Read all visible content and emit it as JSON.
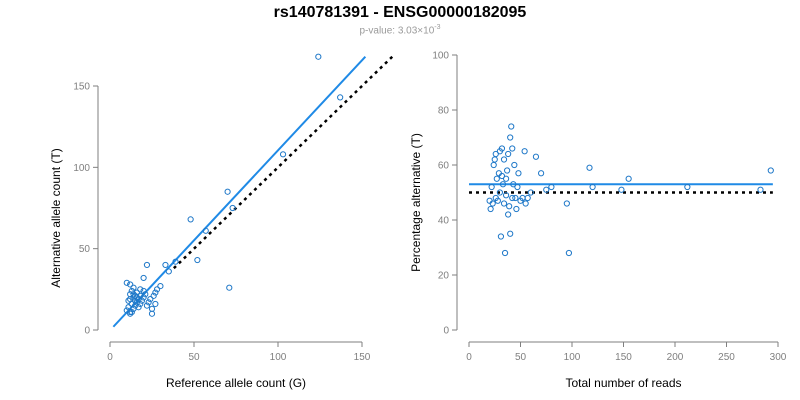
{
  "header": {
    "title": "rs140781391 - ENSG00000182095",
    "pvalue_label": "p-value: 3.03×10",
    "pvalue_exponent": "-3"
  },
  "colors": {
    "points": "#1f78c8",
    "fit_line": "#1f8ae6",
    "reference_line": "#000000",
    "axis": "#7f7f7f"
  },
  "chart_data": [
    {
      "type": "scatter",
      "xlabel": "Reference allele count (G)",
      "ylabel": "Alternative allele count (T)",
      "xlim": [
        0,
        150
      ],
      "ylim": [
        0,
        150
      ],
      "xticks": [
        0,
        50,
        100,
        150
      ],
      "yticks": [
        0,
        50,
        100,
        150
      ],
      "x": [
        10,
        11,
        11,
        12,
        12,
        12,
        13,
        13,
        14,
        14,
        14,
        15,
        15,
        15,
        16,
        16,
        17,
        17,
        18,
        18,
        18,
        19,
        20,
        20,
        21,
        22,
        23,
        24,
        25,
        26,
        27,
        28,
        10,
        12,
        14,
        16,
        12,
        13,
        20,
        25,
        22,
        27,
        30,
        33,
        35,
        39,
        48,
        52,
        57,
        70,
        71,
        73,
        103,
        124,
        137
      ],
      "y": [
        12,
        14,
        18,
        11,
        19,
        22,
        16,
        24,
        13,
        20,
        26,
        15,
        18,
        21,
        17,
        23,
        14,
        19,
        16,
        21,
        25,
        18,
        20,
        24,
        22,
        15,
        17,
        19,
        13,
        21,
        16,
        25,
        29,
        28,
        22,
        20,
        10,
        11,
        32,
        10,
        40,
        23,
        27,
        40,
        36,
        42,
        68,
        43,
        61,
        85,
        26,
        75,
        108,
        168,
        143
      ],
      "fit_line": {
        "x": [
          2,
          152
        ],
        "y": [
          2,
          168
        ]
      },
      "reference_line": {
        "x": [
          38,
          168
        ],
        "y": [
          38,
          168
        ]
      }
    },
    {
      "type": "scatter",
      "xlabel": "Total number of reads",
      "ylabel": "Percentage alternative (T)",
      "xlim": [
        0,
        300
      ],
      "ylim": [
        0,
        100
      ],
      "xticks": [
        0,
        50,
        100,
        150,
        200,
        250,
        300
      ],
      "yticks": [
        0,
        20,
        40,
        60,
        80,
        100
      ],
      "x": [
        20,
        21,
        22,
        23,
        24,
        25,
        26,
        26,
        27,
        28,
        29,
        30,
        30,
        31,
        32,
        32,
        33,
        34,
        34,
        35,
        36,
        36,
        37,
        38,
        38,
        39,
        40,
        40,
        41,
        42,
        42,
        43,
        44,
        45,
        46,
        47,
        48,
        50,
        52,
        54,
        55,
        57,
        60,
        65,
        70,
        75,
        80,
        95,
        97,
        117,
        120,
        148,
        155,
        212,
        283,
        293
      ],
      "y": [
        47,
        44,
        52,
        46,
        60,
        62,
        48,
        64,
        55,
        47,
        57,
        50,
        65,
        34,
        56,
        66,
        53,
        46,
        62,
        28,
        49,
        55,
        58,
        42,
        64,
        45,
        35,
        70,
        74,
        48,
        66,
        53,
        60,
        48,
        44,
        52,
        57,
        47,
        48,
        65,
        46,
        48,
        50,
        63,
        57,
        51,
        52,
        46,
        28,
        59,
        52,
        51,
        55,
        52,
        51,
        58
      ],
      "fit_line": {
        "x": [
          0,
          295
        ],
        "y": [
          53,
          53
        ]
      },
      "reference_line": {
        "x": [
          0,
          295
        ],
        "y": [
          50,
          50
        ]
      }
    }
  ]
}
